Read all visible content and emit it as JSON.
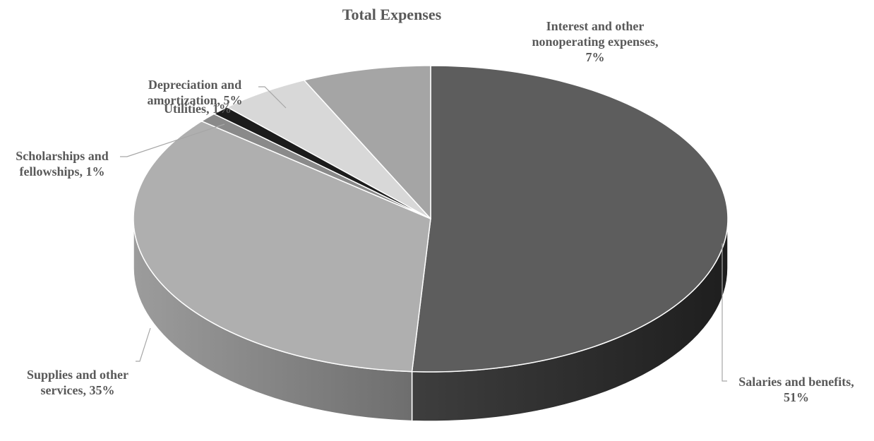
{
  "chart_data": {
    "type": "pie",
    "style": "3d",
    "title": "Total Expenses",
    "slices": [
      {
        "label": "Salaries and benefits",
        "value": 51,
        "display": "Salaries and benefits, 51%",
        "color": "#5d5d5d",
        "side_color": "#2c2c2c"
      },
      {
        "label": "Supplies and other services",
        "value": 35,
        "display": "Supplies and other services, 35%",
        "color": "#afafaf",
        "side_color": "#8c8c8c"
      },
      {
        "label": "Scholarships and fellowships",
        "value": 1,
        "display": "Scholarships and fellowships, 1%",
        "color": "#8a8a8a",
        "side_color": "#6a6a6a"
      },
      {
        "label": "Utilities",
        "value": 1,
        "display": "Utilities, 1%",
        "color": "#1c1c1c",
        "side_color": "#111111"
      },
      {
        "label": "Depreciation and amortization",
        "value": 5,
        "display": "Depreciation and amortization, 5%",
        "color": "#d8d8d8",
        "side_color": "#b8b8b8"
      },
      {
        "label": "Interest and other nonoperating expenses",
        "value": 7,
        "display": "Interest and other nonoperating expenses, 7%",
        "color": "#a5a5a5",
        "side_color": "#858585"
      }
    ],
    "legend": "none",
    "data_labels": "outside-with-leader-lines"
  }
}
